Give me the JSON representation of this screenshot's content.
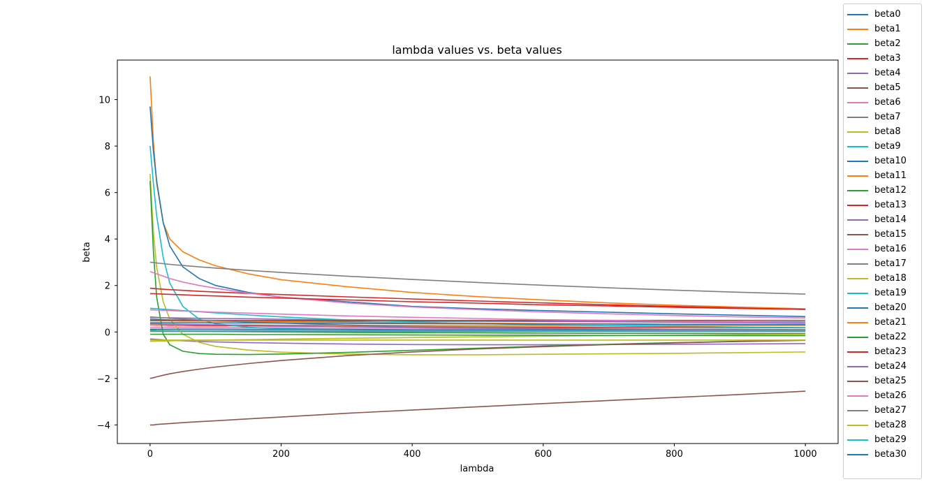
{
  "chart_data": {
    "type": "line",
    "title": "lambda values vs. beta values",
    "xlabel": "lambda",
    "ylabel": "beta",
    "xlim": [
      -50,
      1050
    ],
    "ylim": [
      -4.8,
      11.7
    ],
    "xticks": [
      0,
      200,
      400,
      600,
      800,
      1000
    ],
    "yticks": [
      -4,
      -2,
      0,
      2,
      4,
      6,
      8,
      10
    ],
    "xtick_labels": [
      "0",
      "200",
      "400",
      "600",
      "800",
      "1000"
    ],
    "ytick_labels": [
      "−4",
      "−2",
      "0",
      "2",
      "4",
      "6",
      "8",
      "10"
    ],
    "legend_position": "outside-right",
    "grid": false,
    "x": [
      0,
      5,
      10,
      20,
      30,
      50,
      75,
      100,
      150,
      200,
      300,
      400,
      500,
      600,
      700,
      800,
      900,
      1000
    ],
    "series": [
      {
        "name": "beta0",
        "color": "#1f77b4",
        "values": [
          0.55,
          0.55,
          0.54,
          0.53,
          0.52,
          0.51,
          0.5,
          0.5,
          0.49,
          0.48,
          0.47,
          0.46,
          0.46,
          0.45,
          0.45,
          0.44,
          0.44,
          0.43
        ]
      },
      {
        "name": "beta1",
        "color": "#ff7f0e",
        "values": [
          11.0,
          8.2,
          6.4,
          4.7,
          4.0,
          3.45,
          3.1,
          2.85,
          2.5,
          2.25,
          1.95,
          1.7,
          1.52,
          1.38,
          1.25,
          1.15,
          1.07,
          1.0
        ]
      },
      {
        "name": "beta2",
        "color": "#2ca02c",
        "values": [
          0.1,
          0.08,
          0.07,
          0.06,
          0.05,
          0.04,
          0.03,
          0.02,
          0.01,
          0.0,
          -0.02,
          -0.03,
          -0.04,
          -0.05,
          -0.06,
          -0.06,
          -0.07,
          -0.07
        ]
      },
      {
        "name": "beta3",
        "color": "#d62728",
        "values": [
          0.3,
          0.3,
          0.29,
          0.29,
          0.28,
          0.28,
          0.27,
          0.27,
          0.26,
          0.25,
          0.24,
          0.23,
          0.22,
          0.21,
          0.2,
          0.2,
          0.19,
          0.18
        ]
      },
      {
        "name": "beta4",
        "color": "#9467bd",
        "values": [
          -0.3,
          -0.31,
          -0.32,
          -0.34,
          -0.36,
          -0.38,
          -0.41,
          -0.43,
          -0.46,
          -0.48,
          -0.52,
          -0.54,
          -0.55,
          -0.55,
          -0.54,
          -0.53,
          -0.52,
          -0.5
        ]
      },
      {
        "name": "beta5",
        "color": "#8c564b",
        "values": [
          -4.0,
          -4.0,
          -3.98,
          -3.96,
          -3.94,
          -3.9,
          -3.86,
          -3.82,
          -3.74,
          -3.66,
          -3.5,
          -3.36,
          -3.22,
          -3.08,
          -2.95,
          -2.82,
          -2.69,
          -2.55
        ]
      },
      {
        "name": "beta6",
        "color": "#e377c2",
        "values": [
          0.2,
          0.2,
          0.2,
          0.2,
          0.2,
          0.19,
          0.19,
          0.19,
          0.18,
          0.18,
          0.17,
          0.16,
          0.15,
          0.14,
          0.13,
          0.12,
          0.11,
          0.1
        ]
      },
      {
        "name": "beta7",
        "color": "#7f7f7f",
        "values": [
          0.02,
          0.02,
          0.02,
          0.02,
          0.02,
          0.02,
          0.02,
          0.02,
          0.02,
          0.02,
          0.02,
          0.02,
          0.02,
          0.02,
          0.02,
          0.02,
          0.02,
          0.02
        ]
      },
      {
        "name": "beta8",
        "color": "#bcbd22",
        "values": [
          6.8,
          4.3,
          2.8,
          1.3,
          0.55,
          -0.1,
          -0.45,
          -0.62,
          -0.78,
          -0.87,
          -0.95,
          -0.98,
          -0.98,
          -0.96,
          -0.94,
          -0.92,
          -0.89,
          -0.86
        ]
      },
      {
        "name": "beta9",
        "color": "#17becf",
        "values": [
          8.0,
          6.4,
          5.0,
          3.2,
          2.1,
          1.1,
          0.55,
          0.35,
          0.2,
          0.14,
          0.1,
          0.09,
          0.08,
          0.08,
          0.07,
          0.07,
          0.06,
          0.06
        ]
      },
      {
        "name": "beta10",
        "color": "#1f77b4",
        "values": [
          9.7,
          7.8,
          6.5,
          4.7,
          3.7,
          2.8,
          2.3,
          2.0,
          1.7,
          1.5,
          1.3,
          1.1,
          1.0,
          0.92,
          0.85,
          0.78,
          0.72,
          0.66
        ]
      },
      {
        "name": "beta11",
        "color": "#ff7f0e",
        "values": [
          0.3,
          0.3,
          0.3,
          0.3,
          0.3,
          0.3,
          0.3,
          0.3,
          0.3,
          0.29,
          0.29,
          0.28,
          0.28,
          0.28,
          0.28,
          0.28,
          0.28,
          0.28
        ]
      },
      {
        "name": "beta12",
        "color": "#2ca02c",
        "values": [
          6.5,
          3.5,
          1.5,
          -0.1,
          -0.55,
          -0.83,
          -0.93,
          -0.96,
          -0.97,
          -0.95,
          -0.88,
          -0.79,
          -0.7,
          -0.61,
          -0.53,
          -0.46,
          -0.4,
          -0.35
        ]
      },
      {
        "name": "beta13",
        "color": "#d62728",
        "values": [
          1.88,
          1.87,
          1.86,
          1.84,
          1.82,
          1.79,
          1.75,
          1.72,
          1.66,
          1.61,
          1.51,
          1.42,
          1.33,
          1.25,
          1.17,
          1.1,
          1.03,
          0.97
        ]
      },
      {
        "name": "beta14",
        "color": "#9467bd",
        "values": [
          0.62,
          0.62,
          0.62,
          0.61,
          0.61,
          0.6,
          0.59,
          0.58,
          0.57,
          0.55,
          0.52,
          0.5,
          0.48,
          0.46,
          0.44,
          0.42,
          0.4,
          0.38
        ]
      },
      {
        "name": "beta15",
        "color": "#8c564b",
        "values": [
          -2.0,
          -1.97,
          -1.93,
          -1.86,
          -1.8,
          -1.7,
          -1.6,
          -1.51,
          -1.36,
          -1.23,
          -1.02,
          -0.86,
          -0.73,
          -0.63,
          -0.54,
          -0.47,
          -0.41,
          -0.36
        ]
      },
      {
        "name": "beta16",
        "color": "#e377c2",
        "values": [
          2.6,
          2.55,
          2.5,
          2.4,
          2.3,
          2.15,
          2.0,
          1.88,
          1.67,
          1.5,
          1.25,
          1.08,
          0.96,
          0.86,
          0.78,
          0.71,
          0.65,
          0.6
        ]
      },
      {
        "name": "beta17",
        "color": "#7f7f7f",
        "values": [
          3.0,
          2.99,
          2.97,
          2.94,
          2.91,
          2.86,
          2.8,
          2.75,
          2.65,
          2.56,
          2.4,
          2.26,
          2.13,
          2.01,
          1.9,
          1.8,
          1.71,
          1.63
        ]
      },
      {
        "name": "beta18",
        "color": "#bcbd22",
        "values": [
          -0.4,
          -0.4,
          -0.39,
          -0.39,
          -0.38,
          -0.37,
          -0.36,
          -0.35,
          -0.33,
          -0.31,
          -0.27,
          -0.24,
          -0.21,
          -0.18,
          -0.16,
          -0.14,
          -0.12,
          -0.1
        ]
      },
      {
        "name": "beta19",
        "color": "#17becf",
        "values": [
          1.02,
          1.01,
          1.0,
          0.98,
          0.96,
          0.92,
          0.87,
          0.82,
          0.73,
          0.65,
          0.52,
          0.43,
          0.36,
          0.31,
          0.27,
          0.24,
          0.21,
          0.19
        ]
      },
      {
        "name": "beta20",
        "color": "#1f77b4",
        "values": [
          0.12,
          0.12,
          0.12,
          0.12,
          0.12,
          0.12,
          0.12,
          0.12,
          0.11,
          0.11,
          0.11,
          0.1,
          0.1,
          0.1,
          0.09,
          0.09,
          0.09,
          0.08
        ]
      },
      {
        "name": "beta21",
        "color": "#ff7f0e",
        "values": [
          0.48,
          0.48,
          0.48,
          0.48,
          0.48,
          0.47,
          0.47,
          0.46,
          0.45,
          0.44,
          0.42,
          0.4,
          0.38,
          0.36,
          0.35,
          0.33,
          0.32,
          0.3
        ]
      },
      {
        "name": "beta22",
        "color": "#2ca02c",
        "values": [
          -0.1,
          -0.1,
          -0.1,
          -0.1,
          -0.1,
          -0.1,
          -0.1,
          -0.1,
          -0.11,
          -0.11,
          -0.12,
          -0.13,
          -0.14,
          -0.14,
          -0.15,
          -0.15,
          -0.16,
          -0.16
        ]
      },
      {
        "name": "beta23",
        "color": "#d62728",
        "values": [
          1.65,
          1.65,
          1.64,
          1.63,
          1.62,
          1.6,
          1.57,
          1.55,
          1.5,
          1.46,
          1.38,
          1.3,
          1.24,
          1.17,
          1.12,
          1.06,
          1.01,
          0.97
        ]
      },
      {
        "name": "beta24",
        "color": "#9467bd",
        "values": [
          0.35,
          0.35,
          0.35,
          0.34,
          0.34,
          0.33,
          0.32,
          0.31,
          0.29,
          0.27,
          0.23,
          0.2,
          0.17,
          0.14,
          0.12,
          0.1,
          0.08,
          0.06
        ]
      },
      {
        "name": "beta25",
        "color": "#8c564b",
        "values": [
          0.5,
          0.5,
          0.5,
          0.5,
          0.5,
          0.5,
          0.5,
          0.5,
          0.5,
          0.5,
          0.5,
          0.5,
          0.5,
          0.5,
          0.5,
          0.5,
          0.5,
          0.5
        ]
      },
      {
        "name": "beta26",
        "color": "#e377c2",
        "values": [
          0.95,
          0.95,
          0.94,
          0.93,
          0.92,
          0.9,
          0.88,
          0.85,
          0.81,
          0.77,
          0.69,
          0.63,
          0.58,
          0.53,
          0.5,
          0.46,
          0.44,
          0.41
        ]
      },
      {
        "name": "beta27",
        "color": "#7f7f7f",
        "values": [
          0.65,
          0.64,
          0.63,
          0.61,
          0.59,
          0.56,
          0.52,
          0.49,
          0.43,
          0.38,
          0.3,
          0.24,
          0.2,
          0.17,
          0.14,
          0.12,
          0.11,
          0.1
        ]
      },
      {
        "name": "beta28",
        "color": "#bcbd22",
        "values": [
          -0.35,
          -0.35,
          -0.35,
          -0.35,
          -0.35,
          -0.35,
          -0.35,
          -0.35,
          -0.35,
          -0.35,
          -0.35,
          -0.35,
          -0.35,
          -0.35,
          -0.35,
          -0.35,
          -0.35,
          -0.35
        ]
      },
      {
        "name": "beta29",
        "color": "#17becf",
        "values": [
          0.05,
          0.05,
          0.05,
          0.05,
          0.05,
          0.05,
          0.05,
          0.05,
          0.05,
          0.05,
          0.05,
          0.05,
          0.05,
          0.05,
          0.05,
          0.05,
          0.05,
          0.05
        ]
      },
      {
        "name": "beta30",
        "color": "#1f77b4",
        "values": [
          0.4,
          0.4,
          0.4,
          0.4,
          0.4,
          0.4,
          0.4,
          0.39,
          0.39,
          0.38,
          0.37,
          0.36,
          0.35,
          0.34,
          0.34,
          0.33,
          0.32,
          0.32
        ]
      }
    ]
  }
}
